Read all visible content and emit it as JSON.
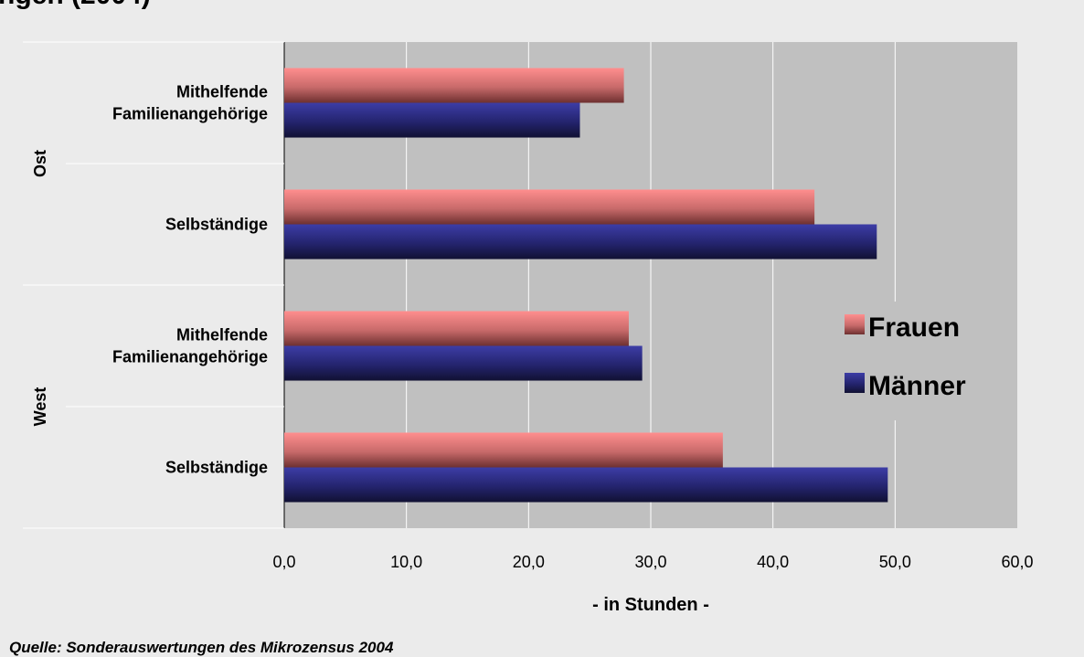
{
  "title_fragment": "ngen (2004)",
  "source": "Quelle: Sonderauswertungen des Mikrozensus 2004",
  "chart_data": {
    "type": "bar",
    "orientation": "horizontal",
    "title": "",
    "xlabel": "- in Stunden -",
    "ylabel": "",
    "xlim": [
      0,
      60
    ],
    "xticks": [
      "0,0",
      "10,0",
      "20,0",
      "30,0",
      "40,0",
      "50,0",
      "60,0"
    ],
    "grid": "vertical",
    "legend_position": "right",
    "groups": [
      {
        "label": "Ost",
        "categories": [
          "Mithelfende\nFamilienangehörige",
          "Selbständige"
        ]
      },
      {
        "label": "West",
        "categories": [
          "Mithelfende\nFamilienangehörige",
          "Selbständige"
        ]
      }
    ],
    "series": [
      {
        "name": "Frauen",
        "color": "#f08080",
        "values": [
          27.8,
          43.4,
          28.2,
          35.9
        ]
      },
      {
        "name": "Männer",
        "color": "#333399",
        "values": [
          24.2,
          48.5,
          29.3,
          49.4
        ]
      }
    ]
  }
}
